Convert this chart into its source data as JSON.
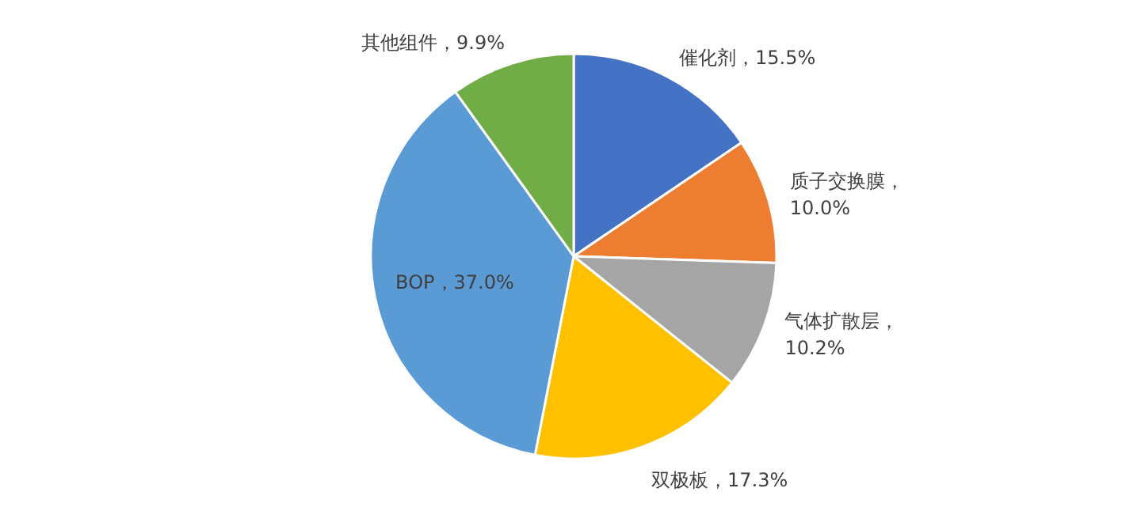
{
  "chart_data": {
    "type": "pie",
    "categories": [
      "催化剂",
      "质子交换膜",
      "气体扩散层",
      "双极板",
      "BOP",
      "其他组件"
    ],
    "values": [
      15.5,
      10.0,
      10.2,
      17.3,
      37.0,
      9.9
    ],
    "value_labels": [
      "，15.5%",
      "，10.0%",
      "，10.2%",
      "，17.3%",
      "，37.0%",
      "，9.9%"
    ],
    "colors": [
      "#4472c4",
      "#ed7d31",
      "#a5a5a5",
      "#ffc000",
      "#5b9bd5",
      "#70ad47"
    ],
    "legend": false
  }
}
